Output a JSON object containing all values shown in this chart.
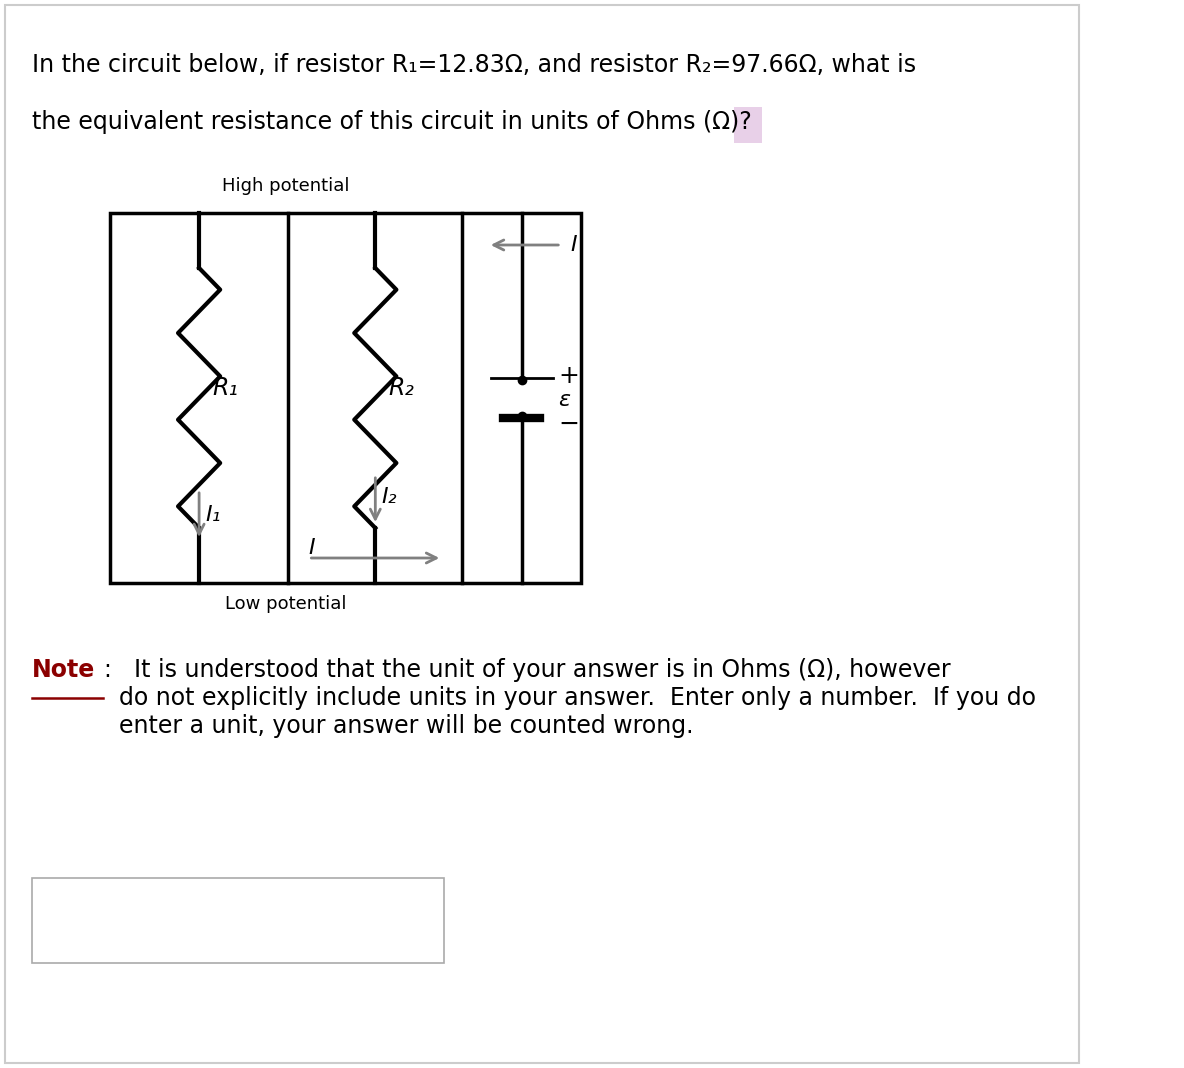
{
  "title_line1": "In the circuit below, if resistor R₁=12.83Ω, and resistor R₂=97.66Ω, what is",
  "title_line2": "the equivalent resistance of this circuit in units of Ohms (Ω)?",
  "high_potential": "High potential",
  "low_potential": "Low potential",
  "label_R1": "R₁",
  "label_R2": "R₂",
  "label_I1": "I₁",
  "label_I2": "I₂",
  "label_I": "I",
  "label_plus": "+",
  "label_minus": "−",
  "label_emf": "ε",
  "note_word": "Note",
  "note_colon": ":",
  "note_rest": "  It is understood that the unit of your answer is in Ohms (Ω), however\ndo not explicitly include units in your answer.  Enter only a number.  If you do\nenter a unit, your answer will be counted wrong.",
  "bg_color": "#ffffff",
  "circuit_color": "#000000",
  "arrow_color": "#808080",
  "text_color": "#000000",
  "note_color": "#8B0000",
  "highlight_color": "#e8d0e8"
}
